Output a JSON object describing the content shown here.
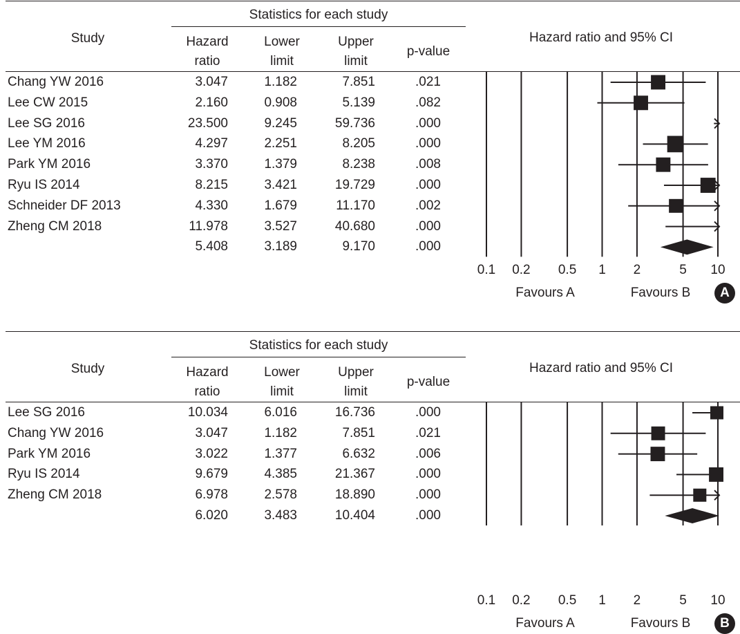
{
  "chart_data": [
    {
      "type": "forest",
      "panel_label": "A",
      "title": "Hazard ratio and 95% CI",
      "group_header": "Statistics for each study",
      "columns": {
        "study": "Study",
        "hr": [
          "Hazard",
          "ratio"
        ],
        "lower": [
          "Lower",
          "limit"
        ],
        "upper": [
          "Upper",
          "limit"
        ],
        "p": "p-value"
      },
      "rows": [
        {
          "study": "Chang YW 2016",
          "hr": "3.047",
          "lower": "1.182",
          "upper": "7.851",
          "p": ".021",
          "hr_value": 3.047,
          "lower_value": 1.182,
          "upper_value": 7.851,
          "weight": 1.1
        },
        {
          "study": "Lee CW 2015",
          "hr": "2.160",
          "lower": "0.908",
          "upper": "5.139",
          "p": ".082",
          "hr_value": 2.16,
          "lower_value": 0.908,
          "upper_value": 5.139,
          "weight": 1.1
        },
        {
          "study": "Lee SG 2016",
          "hr": "23.500",
          "lower": "9.245",
          "upper": "59.736",
          "p": ".000",
          "hr_value": 23.5,
          "lower_value": 9.245,
          "upper_value": 59.736,
          "weight": 1.0
        },
        {
          "study": "Lee YM 2016",
          "hr": "4.297",
          "lower": "2.251",
          "upper": "8.205",
          "p": ".000",
          "hr_value": 4.297,
          "lower_value": 2.251,
          "upper_value": 8.205,
          "weight": 1.25
        },
        {
          "study": "Park YM 2016",
          "hr": "3.370",
          "lower": "1.379",
          "upper": "8.238",
          "p": ".008",
          "hr_value": 3.37,
          "lower_value": 1.379,
          "upper_value": 8.238,
          "weight": 1.1
        },
        {
          "study": "Ryu IS 2014",
          "hr": "8.215",
          "lower": "3.421",
          "upper": "19.729",
          "p": ".000",
          "hr_value": 8.215,
          "lower_value": 3.421,
          "upper_value": 19.729,
          "weight": 1.15
        },
        {
          "study": "Schneider DF 2013",
          "hr": "4.330",
          "lower": "1.679",
          "upper": "11.170",
          "p": ".002",
          "hr_value": 4.33,
          "lower_value": 1.679,
          "upper_value": 11.17,
          "weight": 1.05
        },
        {
          "study": "Zheng CM 2018",
          "hr": "11.978",
          "lower": "3.527",
          "upper": "40.680",
          "p": ".000",
          "hr_value": 11.978,
          "lower_value": 3.527,
          "upper_value": 40.68,
          "weight": 1.0
        }
      ],
      "summary": {
        "hr": "5.408",
        "lower": "3.189",
        "upper": "9.170",
        "p": ".000",
        "hr_value": 5.408,
        "lower_value": 3.189,
        "upper_value": 9.17
      },
      "x_scale": "log",
      "xlim": [
        0.1,
        10
      ],
      "ticks": [
        0.1,
        0.2,
        0.5,
        1,
        2,
        5,
        10
      ],
      "tick_labels": [
        "0.1",
        "0.2",
        "0.5",
        "1",
        "2",
        "5",
        "10"
      ],
      "favours_left": "Favours A",
      "favours_right": "Favours B"
    },
    {
      "type": "forest",
      "panel_label": "B",
      "title": "Hazard ratio and 95% CI",
      "group_header": "Statistics for each study",
      "columns": {
        "study": "Study",
        "hr": [
          "Hazard",
          "ratio"
        ],
        "lower": [
          "Lower",
          "limit"
        ],
        "upper": [
          "Upper",
          "limit"
        ],
        "p": "p-value"
      },
      "rows": [
        {
          "study": "Lee SG 2016",
          "hr": "10.034",
          "lower": "6.016",
          "upper": "16.736",
          "p": ".000",
          "hr_value": 10.034,
          "lower_value": 6.016,
          "upper_value": 16.736,
          "weight": 1.0
        },
        {
          "study": "Chang YW 2016",
          "hr": "3.047",
          "lower": "1.182",
          "upper": "7.851",
          "p": ".021",
          "hr_value": 3.047,
          "lower_value": 1.182,
          "upper_value": 7.851,
          "weight": 1.05
        },
        {
          "study": "Park YM 2016",
          "hr": "3.022",
          "lower": "1.377",
          "upper": "6.632",
          "p": ".006",
          "hr_value": 3.022,
          "lower_value": 1.377,
          "upper_value": 6.632,
          "weight": 1.1
        },
        {
          "study": "Ryu IS 2014",
          "hr": "9.679",
          "lower": "4.385",
          "upper": "21.367",
          "p": ".000",
          "hr_value": 9.679,
          "lower_value": 4.385,
          "upper_value": 21.367,
          "weight": 1.1
        },
        {
          "study": "Zheng CM 2018",
          "hr": "6.978",
          "lower": "2.578",
          "upper": "18.890",
          "p": ".000",
          "hr_value": 6.978,
          "lower_value": 2.578,
          "upper_value": 18.89,
          "weight": 1.0
        }
      ],
      "summary": {
        "hr": "6.020",
        "lower": "3.483",
        "upper": "10.404",
        "p": ".000",
        "hr_value": 6.02,
        "lower_value": 3.483,
        "upper_value": 10.404
      },
      "x_scale": "log",
      "xlim": [
        0.1,
        10
      ],
      "ticks": [
        0.1,
        0.2,
        0.5,
        1,
        2,
        5,
        10
      ],
      "tick_labels": [
        "0.1",
        "0.2",
        "0.5",
        "1",
        "2",
        "5",
        "10"
      ],
      "favours_left": "Favours A",
      "favours_right": "Favours B"
    }
  ]
}
